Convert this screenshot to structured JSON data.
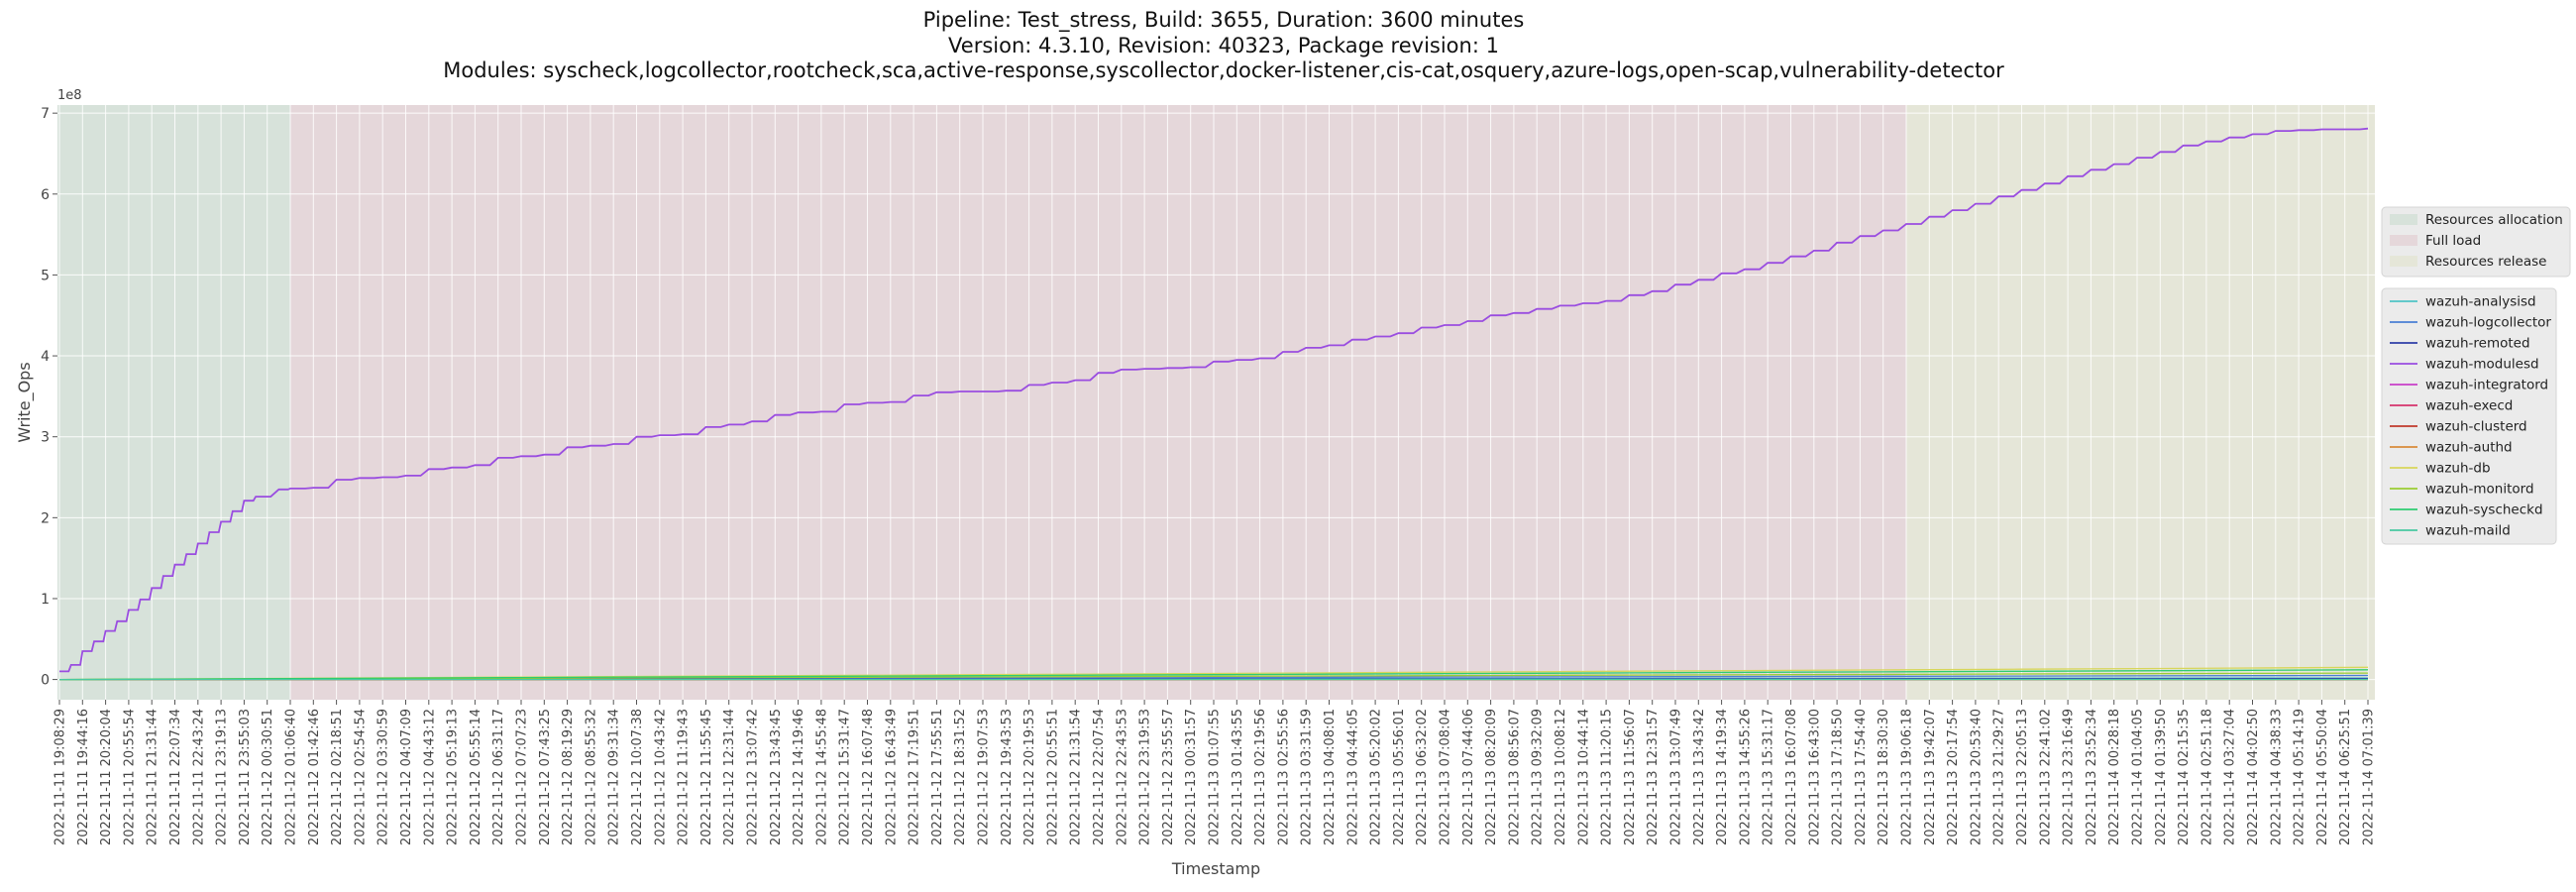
{
  "title_lines": [
    "Pipeline: Test_stress, Build: 3655, Duration: 3600 minutes",
    "Version: 4.3.10, Revision: 40323, Package revision: 1",
    "Modules: syscheck,logcollector,rootcheck,sca,active-response,syscollector,docker-listener,cis-cat,osquery,azure-logs,open-scap,vulnerability-detector"
  ],
  "chart_data": {
    "type": "line",
    "xlabel": "Timestamp",
    "ylabel": "Write_Ops",
    "y_offset_label": "1e8",
    "ylim": [
      -0.25,
      7.1
    ],
    "yticks": [
      0,
      1,
      2,
      3,
      4,
      5,
      6,
      7
    ],
    "grid": true,
    "legend_placement": "right, outside plot",
    "x_ticks": [
      "2022-11-11 19:08:29",
      "2022-11-11 19:44:16",
      "2022-11-11 20:20:04",
      "2022-11-11 20:55:54",
      "2022-11-11 21:31:44",
      "2022-11-11 22:07:34",
      "2022-11-11 22:43:24",
      "2022-11-11 23:19:13",
      "2022-11-11 23:55:03",
      "2022-11-12 00:30:51",
      "2022-11-12 01:06:40",
      "2022-11-12 01:42:46",
      "2022-11-12 02:18:51",
      "2022-11-12 02:54:54",
      "2022-11-12 03:30:59",
      "2022-11-12 04:07:09",
      "2022-11-12 04:43:12",
      "2022-11-12 05:19:13",
      "2022-11-12 05:55:14",
      "2022-11-12 06:31:17",
      "2022-11-12 07:07:23",
      "2022-11-12 07:43:25",
      "2022-11-12 08:19:29",
      "2022-11-12 08:55:32",
      "2022-11-12 09:31:34",
      "2022-11-12 10:07:38",
      "2022-11-12 10:43:42",
      "2022-11-12 11:19:43",
      "2022-11-12 11:55:45",
      "2022-11-12 12:31:44",
      "2022-11-12 13:07:42",
      "2022-11-12 13:43:45",
      "2022-11-12 14:19:46",
      "2022-11-12 14:55:48",
      "2022-11-12 15:31:47",
      "2022-11-12 16:07:48",
      "2022-11-12 16:43:49",
      "2022-11-12 17:19:51",
      "2022-11-12 17:55:51",
      "2022-11-12 18:31:52",
      "2022-11-12 19:07:53",
      "2022-11-12 19:43:53",
      "2022-11-12 20:19:53",
      "2022-11-12 20:55:51",
      "2022-11-12 21:31:54",
      "2022-11-12 22:07:54",
      "2022-11-12 22:43:53",
      "2022-11-12 23:19:53",
      "2022-11-12 23:55:57",
      "2022-11-13 00:31:57",
      "2022-11-13 01:07:55",
      "2022-11-13 01:43:55",
      "2022-11-13 02:19:56",
      "2022-11-13 02:55:56",
      "2022-11-13 03:31:59",
      "2022-11-13 04:08:01",
      "2022-11-13 04:44:05",
      "2022-11-13 05:20:02",
      "2022-11-13 05:56:01",
      "2022-11-13 06:32:02",
      "2022-11-13 07:08:04",
      "2022-11-13 07:44:06",
      "2022-11-13 08:20:09",
      "2022-11-13 08:56:07",
      "2022-11-13 09:32:09",
      "2022-11-13 10:08:12",
      "2022-11-13 10:44:14",
      "2022-11-13 11:20:15",
      "2022-11-13 11:56:07",
      "2022-11-13 12:31:57",
      "2022-11-13 13:07:49",
      "2022-11-13 13:43:42",
      "2022-11-13 14:19:34",
      "2022-11-13 14:55:26",
      "2022-11-13 15:31:17",
      "2022-11-13 16:07:08",
      "2022-11-13 16:43:00",
      "2022-11-13 17:18:50",
      "2022-11-13 17:54:40",
      "2022-11-13 18:30:30",
      "2022-11-13 19:06:18",
      "2022-11-13 19:42:07",
      "2022-11-13 20:17:54",
      "2022-11-13 20:53:40",
      "2022-11-13 21:29:27",
      "2022-11-13 22:05:13",
      "2022-11-13 22:41:02",
      "2022-11-13 23:16:49",
      "2022-11-13 23:52:34",
      "2022-11-14 00:28:18",
      "2022-11-14 01:04:05",
      "2022-11-14 01:39:50",
      "2022-11-14 02:15:35",
      "2022-11-14 02:51:18",
      "2022-11-14 03:27:04",
      "2022-11-14 04:02:50",
      "2022-11-14 04:38:33",
      "2022-11-14 05:14:19",
      "2022-11-14 05:50:04",
      "2022-11-14 06:25:51",
      "2022-11-14 07:01:39"
    ],
    "phases": [
      {
        "name": "Resources allocation",
        "from_tick": 0,
        "to_tick": 10,
        "color": "#d7e2da"
      },
      {
        "name": "Full load",
        "from_tick": 10,
        "to_tick": 80,
        "color": "#e5d7da"
      },
      {
        "name": "Resources release",
        "from_tick": 80,
        "to_tick": 100.3,
        "color": "#e5e6d8"
      }
    ],
    "modulesd_steps": [
      [
        0,
        0.1
      ],
      [
        0.5,
        0.18
      ],
      [
        1,
        0.35
      ],
      [
        1.5,
        0.47
      ],
      [
        2,
        0.6
      ],
      [
        2.5,
        0.72
      ],
      [
        3,
        0.86
      ],
      [
        3.5,
        0.99
      ],
      [
        4,
        1.13
      ],
      [
        4.5,
        1.28
      ],
      [
        5,
        1.42
      ],
      [
        5.5,
        1.55
      ],
      [
        6,
        1.68
      ],
      [
        6.5,
        1.82
      ],
      [
        7,
        1.95
      ],
      [
        7.5,
        2.08
      ],
      [
        8,
        2.21
      ],
      [
        8.5,
        2.26
      ],
      [
        9.5,
        2.35
      ],
      [
        10,
        2.36
      ],
      [
        11,
        2.37
      ],
      [
        12,
        2.47
      ],
      [
        13,
        2.49
      ],
      [
        14,
        2.5
      ],
      [
        15,
        2.52
      ],
      [
        16,
        2.6
      ],
      [
        17,
        2.62
      ],
      [
        18,
        2.65
      ],
      [
        19,
        2.74
      ],
      [
        20,
        2.76
      ],
      [
        21,
        2.78
      ],
      [
        22,
        2.87
      ],
      [
        23,
        2.89
      ],
      [
        24,
        2.91
      ],
      [
        25,
        3.0
      ],
      [
        26,
        3.02
      ],
      [
        27,
        3.03
      ],
      [
        28,
        3.12
      ],
      [
        29,
        3.15
      ],
      [
        30,
        3.19
      ],
      [
        31,
        3.27
      ],
      [
        32,
        3.3
      ],
      [
        33,
        3.31
      ],
      [
        34,
        3.4
      ],
      [
        35,
        3.42
      ],
      [
        36,
        3.43
      ],
      [
        37,
        3.51
      ],
      [
        38,
        3.55
      ],
      [
        39,
        3.56
      ],
      [
        40,
        3.56
      ],
      [
        41,
        3.57
      ],
      [
        42,
        3.64
      ],
      [
        43,
        3.67
      ],
      [
        44,
        3.7
      ],
      [
        45,
        3.79
      ],
      [
        46,
        3.83
      ],
      [
        47,
        3.84
      ],
      [
        48,
        3.85
      ],
      [
        49,
        3.86
      ],
      [
        50,
        3.93
      ],
      [
        51,
        3.95
      ],
      [
        52,
        3.97
      ],
      [
        53,
        4.05
      ],
      [
        54,
        4.1
      ],
      [
        55,
        4.13
      ],
      [
        56,
        4.2
      ],
      [
        57,
        4.24
      ],
      [
        58,
        4.28
      ],
      [
        59,
        4.35
      ],
      [
        60,
        4.38
      ],
      [
        61,
        4.43
      ],
      [
        62,
        4.5
      ],
      [
        63,
        4.53
      ],
      [
        64,
        4.58
      ],
      [
        65,
        4.62
      ],
      [
        66,
        4.65
      ],
      [
        67,
        4.68
      ],
      [
        68,
        4.75
      ],
      [
        69,
        4.8
      ],
      [
        70,
        4.88
      ],
      [
        71,
        4.94
      ],
      [
        72,
        5.02
      ],
      [
        73,
        5.07
      ],
      [
        74,
        5.15
      ],
      [
        75,
        5.23
      ],
      [
        76,
        5.3
      ],
      [
        77,
        5.4
      ],
      [
        78,
        5.48
      ],
      [
        79,
        5.55
      ],
      [
        80,
        5.63
      ],
      [
        81,
        5.72
      ],
      [
        82,
        5.8
      ],
      [
        83,
        5.88
      ],
      [
        84,
        5.97
      ],
      [
        85,
        6.05
      ],
      [
        86,
        6.13
      ],
      [
        87,
        6.22
      ],
      [
        88,
        6.3
      ],
      [
        89,
        6.37
      ],
      [
        90,
        6.45
      ],
      [
        91,
        6.52
      ],
      [
        92,
        6.6
      ],
      [
        93,
        6.65
      ],
      [
        94,
        6.7
      ],
      [
        95,
        6.74
      ],
      [
        96,
        6.78
      ],
      [
        97,
        6.79
      ],
      [
        98,
        6.8
      ],
      [
        99,
        6.8
      ],
      [
        100,
        6.81
      ]
    ],
    "series": [
      {
        "name": "wazuh-analysisd",
        "color": "#4fc4c6",
        "start": 0.0,
        "end": 0.02
      },
      {
        "name": "wazuh-logcollector",
        "color": "#4a7fd4",
        "start": 0.0,
        "end": 0.05
      },
      {
        "name": "wazuh-remoted",
        "color": "#2f3fa8",
        "start": 0.0,
        "end": 0.01
      },
      {
        "name": "wazuh-modulesd",
        "color": "#9a4de0",
        "start": 0.1,
        "end": 6.81
      },
      {
        "name": "wazuh-integratord",
        "color": "#c93fc9",
        "start": 0.0,
        "end": 0.0
      },
      {
        "name": "wazuh-execd",
        "color": "#d6336c",
        "start": 0.0,
        "end": 0.0
      },
      {
        "name": "wazuh-clusterd",
        "color": "#c0392b",
        "start": 0.0,
        "end": 0.0
      },
      {
        "name": "wazuh-authd",
        "color": "#d98b3a",
        "start": 0.0,
        "end": 0.0
      },
      {
        "name": "wazuh-db",
        "color": "#d8d65a",
        "start": 0.0,
        "end": 0.15
      },
      {
        "name": "wazuh-monitord",
        "color": "#9acd32",
        "start": 0.0,
        "end": 0.08
      },
      {
        "name": "wazuh-syscheckd",
        "color": "#2ecc71",
        "start": 0.0,
        "end": 0.12
      },
      {
        "name": "wazuh-maild",
        "color": "#48c9a0",
        "start": 0.0,
        "end": 0.0
      }
    ]
  }
}
